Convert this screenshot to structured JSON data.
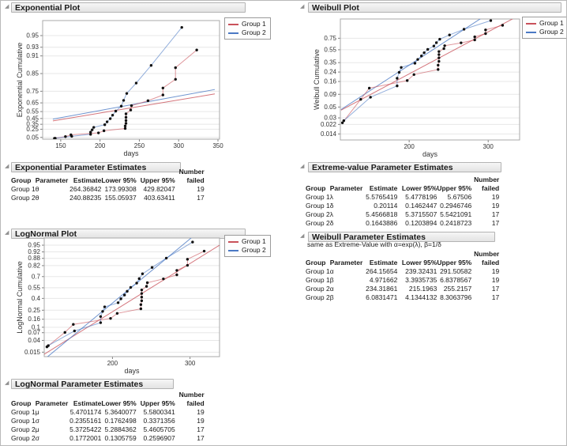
{
  "colors": {
    "group1": "#c9515a",
    "group2": "#4b79c4",
    "dot": "#111111",
    "grid": "#e7e7e7",
    "frame": "#a8a8a8",
    "tick": "#808080",
    "axis_text": "#333333"
  },
  "legend": {
    "items": [
      {
        "label": "Group 1"
      },
      {
        "label": "Group 2"
      }
    ]
  },
  "sections": {
    "exp_plot_title": "Exponential Plot",
    "weibull_plot_title": "Weibull Plot",
    "exp_param_title": "Exponential Parameter Estimates",
    "ev_param_title": "Extreme-value Parameter Estimates",
    "lognormal_plot_title": "LogNormal Plot",
    "weibull_param_title": "Weibull Parameter Estimates",
    "weibull_param_note": "same as Extreme-Value with α=exp(λ), β=1/δ",
    "lognormal_param_title": "LogNormal Parameter Estimates"
  },
  "table_headers": {
    "group": "Group",
    "parameter": "Parameter",
    "estimate": "Estimate",
    "lower": "Lower 95%",
    "upper": "Upper 95%",
    "number": "Number",
    "failed": "failed"
  },
  "tables": {
    "exponential": {
      "rows": [
        [
          "Group 1",
          "θ",
          "264.36842",
          "173.99308",
          "429.82047",
          "19"
        ],
        [
          "Group 2",
          "θ",
          "240.88235",
          "155.05937",
          "403.63411",
          "17"
        ]
      ]
    },
    "extreme_value": {
      "rows": [
        [
          "Group 1",
          "λ",
          "5.5765419",
          "5.4778196",
          "5.67506",
          "19"
        ],
        [
          "Group 1",
          "δ",
          "0.20114",
          "0.1462447",
          "0.2946746",
          "19"
        ],
        [
          "Group 2",
          "λ",
          "5.4566818",
          "5.3715507",
          "5.5421091",
          "17"
        ],
        [
          "Group 2",
          "δ",
          "0.1643886",
          "0.1203894",
          "0.2418723",
          "17"
        ]
      ]
    },
    "weibull": {
      "rows": [
        [
          "Group 1",
          "α",
          "264.15654",
          "239.32431",
          "291.50582",
          "19"
        ],
        [
          "Group 1",
          "β",
          "4.971662",
          "3.3935735",
          "6.8378567",
          "19"
        ],
        [
          "Group 2",
          "α",
          "234.31861",
          "215.1963",
          "255.2157",
          "17"
        ],
        [
          "Group 2",
          "β",
          "6.0831471",
          "4.1344132",
          "8.3063796",
          "17"
        ]
      ]
    },
    "lognormal": {
      "rows": [
        [
          "Group 1",
          "μ",
          "5.4701174",
          "5.3640077",
          "5.5800341",
          "19"
        ],
        [
          "Group 1",
          "σ",
          "0.2355161",
          "0.1762498",
          "0.3371356",
          "19"
        ],
        [
          "Group 2",
          "μ",
          "5.3725422",
          "5.2884362",
          "5.4605705",
          "17"
        ],
        [
          "Group 2",
          "σ",
          "0.1772001",
          "0.1305759",
          "0.2596907",
          "17"
        ]
      ]
    }
  },
  "chart_data": [
    {
      "type": "line",
      "title": "Exponential Plot",
      "xlabel": "days",
      "ylabel": "Exponential Cumulative",
      "xscale": "linear",
      "yscale": "exponential",
      "xlim": [
        127,
        352
      ],
      "ylim_t": [
        0,
        3.43
      ],
      "xticks": [
        150,
        200,
        250,
        300,
        350
      ],
      "yticks": [
        0.05,
        0.25,
        0.35,
        0.45,
        0.55,
        0.65,
        0.75,
        0.85,
        0.91,
        0.93,
        0.95
      ],
      "grid": "horizontal",
      "legend_position": "top-right",
      "series": [
        {
          "name": "Group 1",
          "points": [
            [
              142,
              0.0238
            ],
            [
              156,
              0.0714
            ],
            [
              163,
              0.119
            ],
            [
              198,
              0.1667
            ],
            [
              205,
              0.2158
            ],
            [
              232,
              0.2664
            ],
            [
              232,
              0.317
            ],
            [
              233,
              0.3676
            ],
            [
              233,
              0.4182
            ],
            [
              233,
              0.4688
            ],
            [
              233,
              0.5193
            ],
            [
              239,
              0.5699
            ],
            [
              240,
              0.6205
            ],
            [
              261,
              0.6711
            ],
            [
              280,
              0.7217
            ],
            [
              280,
              0.7723
            ],
            [
              296,
              0.8229
            ],
            [
              296,
              0.8735
            ],
            [
              323,
              0.9241
            ]
          ]
        },
        {
          "name": "Group 2",
          "points": [
            [
              143,
              0.0263
            ],
            [
              164,
              0.0789
            ],
            [
              188,
              0.1316
            ],
            [
              188,
              0.1842
            ],
            [
              190,
              0.2368
            ],
            [
              192,
              0.2895
            ],
            [
              206,
              0.3421
            ],
            [
              209,
              0.3947
            ],
            [
              213,
              0.4474
            ],
            [
              216,
              0.5
            ],
            [
              220,
              0.5559
            ],
            [
              227,
              0.6151
            ],
            [
              230,
              0.6743
            ],
            [
              234,
              0.7336
            ],
            [
              246,
              0.8026
            ],
            [
              265,
              0.8816
            ],
            [
              304,
              0.9605
            ]
          ]
        }
      ],
      "fits": [
        {
          "name": "Group 1",
          "x": [
            140,
            346
          ],
          "t": [
            0.5296,
            1.3088
          ]
        },
        {
          "name": "Group 2",
          "x": [
            140,
            346
          ],
          "t": [
            0.5812,
            1.4364
          ]
        }
      ]
    },
    {
      "type": "line",
      "title": "Weibull Plot",
      "xlabel": "days",
      "ylabel": "Weibull Cumulative",
      "xscale": "log",
      "yscale": "weibull",
      "xlim": [
        140.5,
        352.5
      ],
      "ylim_t": [
        -4.55,
        1.25
      ],
      "xticks": [
        200,
        300
      ],
      "yticks": [
        0.014,
        0.022,
        0.03,
        0.05,
        0.09,
        0.16,
        0.24,
        0.35,
        0.55,
        0.75
      ],
      "grid": "horizontal",
      "legend_position": "top-right",
      "series": [
        {
          "name": "Group 1",
          "points": [
            [
              142,
              0.0238
            ],
            [
              156,
              0.0714
            ],
            [
              163,
              0.119
            ],
            [
              198,
              0.1667
            ],
            [
              205,
              0.2158
            ],
            [
              232,
              0.2664
            ],
            [
              232,
              0.317
            ],
            [
              233,
              0.3676
            ],
            [
              233,
              0.4182
            ],
            [
              233,
              0.4688
            ],
            [
              233,
              0.5193
            ],
            [
              239,
              0.5699
            ],
            [
              240,
              0.6205
            ],
            [
              261,
              0.6711
            ],
            [
              280,
              0.7217
            ],
            [
              280,
              0.7723
            ],
            [
              296,
              0.8229
            ],
            [
              296,
              0.8735
            ],
            [
              323,
              0.9241
            ]
          ]
        },
        {
          "name": "Group 2",
          "points": [
            [
              143,
              0.0263
            ],
            [
              164,
              0.0789
            ],
            [
              188,
              0.1316
            ],
            [
              188,
              0.1842
            ],
            [
              190,
              0.2368
            ],
            [
              192,
              0.2895
            ],
            [
              206,
              0.3421
            ],
            [
              209,
              0.3947
            ],
            [
              213,
              0.4474
            ],
            [
              216,
              0.5
            ],
            [
              220,
              0.5559
            ],
            [
              227,
              0.6151
            ],
            [
              230,
              0.6743
            ],
            [
              234,
              0.7336
            ],
            [
              246,
              0.8026
            ],
            [
              265,
              0.8816
            ],
            [
              304,
              0.9605
            ]
          ]
        }
      ],
      "fits": [
        {
          "name": "Group 1",
          "x": [
            141,
            352
          ],
          "t": [
            -3.122,
            1.427
          ]
        },
        {
          "name": "Group 2",
          "x": [
            141,
            352
          ],
          "t": [
            -3.09,
            2.476
          ]
        }
      ]
    },
    {
      "type": "line",
      "title": "LogNormal Plot",
      "xlabel": "days",
      "ylabel": "LogNormal Cumulative",
      "xscale": "log",
      "yscale": "lognormal",
      "xlim": [
        140,
        350
      ],
      "ylim_t": [
        -2.33,
        1.9
      ],
      "xticks": [
        200,
        300
      ],
      "yticks": [
        0.015,
        0.04,
        0.07,
        0.1,
        0.16,
        0.25,
        0.4,
        0.55,
        0.7,
        0.82,
        0.88,
        0.92,
        0.95
      ],
      "grid": "horizontal",
      "legend_position": "top-right",
      "series": [
        {
          "name": "Group 1",
          "points": [
            [
              142,
              0.0238
            ],
            [
              156,
              0.0714
            ],
            [
              163,
              0.119
            ],
            [
              198,
              0.1667
            ],
            [
              205,
              0.2158
            ],
            [
              232,
              0.2664
            ],
            [
              232,
              0.317
            ],
            [
              233,
              0.3676
            ],
            [
              233,
              0.4182
            ],
            [
              233,
              0.4688
            ],
            [
              233,
              0.5193
            ],
            [
              239,
              0.5699
            ],
            [
              240,
              0.6205
            ],
            [
              261,
              0.6711
            ],
            [
              280,
              0.7217
            ],
            [
              280,
              0.7723
            ],
            [
              296,
              0.8229
            ],
            [
              296,
              0.8735
            ],
            [
              323,
              0.9241
            ]
          ]
        },
        {
          "name": "Group 2",
          "points": [
            [
              143,
              0.0263
            ],
            [
              164,
              0.0789
            ],
            [
              188,
              0.1316
            ],
            [
              188,
              0.1842
            ],
            [
              190,
              0.2368
            ],
            [
              192,
              0.2895
            ],
            [
              206,
              0.3421
            ],
            [
              209,
              0.3947
            ],
            [
              213,
              0.4474
            ],
            [
              216,
              0.5
            ],
            [
              220,
              0.5559
            ],
            [
              227,
              0.6151
            ],
            [
              230,
              0.6743
            ],
            [
              234,
              0.7336
            ],
            [
              246,
              0.8026
            ],
            [
              265,
              0.8816
            ],
            [
              304,
              0.9605
            ]
          ]
        }
      ],
      "fits": [
        {
          "name": "Group 1",
          "x": [
            140,
            350
          ],
          "t": [
            -2.244,
            1.6465
          ]
        },
        {
          "name": "Group 2",
          "x": [
            140,
            350
          ],
          "t": [
            -2.4317,
            2.7392
          ]
        }
      ]
    }
  ]
}
